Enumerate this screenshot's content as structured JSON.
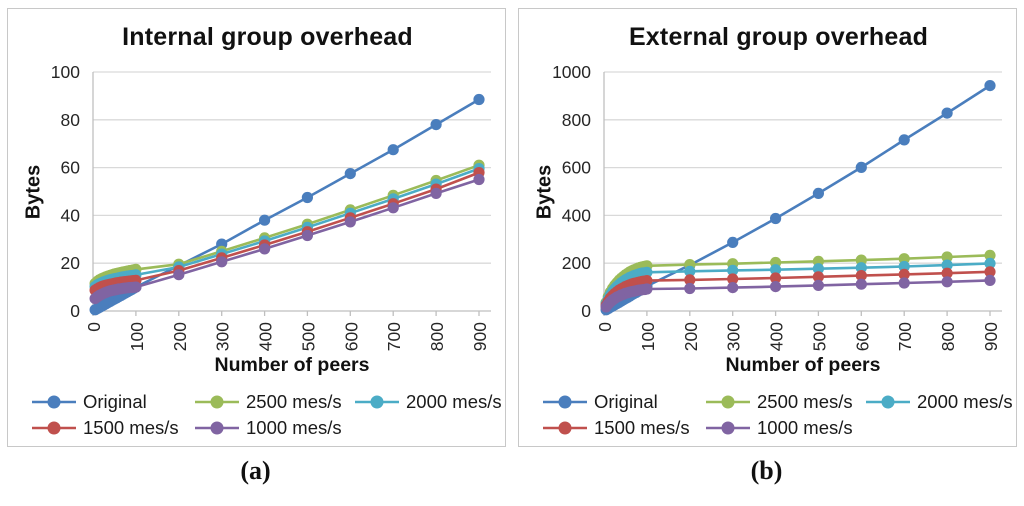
{
  "figure": {
    "captions": {
      "left": "(a)",
      "right": "(b)"
    }
  },
  "palette": {
    "original": "#4A7EBD",
    "mes2500": "#9BBB59",
    "mes2000": "#4BACC6",
    "mes1500": "#C0504D",
    "mes1000": "#8064A2",
    "gridline": "#D9D9D9",
    "axis": "#BFBFBF",
    "tick_text": "#262626"
  },
  "chart_data": [
    {
      "type": "line",
      "title": "Internal group overhead",
      "xlabel": "Number of peers",
      "ylabel": "Bytes",
      "ylim": [
        0,
        100
      ],
      "yticks": [
        0,
        20,
        40,
        60,
        80,
        100
      ],
      "xticks": [
        0,
        100,
        200,
        300,
        400,
        500,
        600,
        700,
        800,
        900
      ],
      "grid": true,
      "legend_position": "bottom",
      "x": [
        5,
        10,
        15,
        20,
        25,
        30,
        35,
        40,
        45,
        50,
        55,
        60,
        65,
        70,
        75,
        80,
        85,
        90,
        95,
        100,
        200,
        300,
        400,
        500,
        600,
        700,
        800,
        900
      ],
      "series": [
        {
          "name": "Original",
          "color": "#4A7EBD",
          "values": [
            0.5,
            1,
            1.5,
            2,
            2.5,
            3,
            3.5,
            4,
            4.5,
            5,
            5.5,
            6,
            6.5,
            7,
            7.5,
            8,
            8.5,
            9,
            9.5,
            10,
            19,
            28,
            38,
            47.5,
            57.5,
            67.5,
            78,
            88.5
          ]
        },
        {
          "name": "2500 mes/s",
          "color": "#9BBB59",
          "values": [
            11.5,
            12.4,
            13,
            13.5,
            13.9,
            14.3,
            14.6,
            14.9,
            15.2,
            15.5,
            15.7,
            15.9,
            16.1,
            16.3,
            16.5,
            16.7,
            16.9,
            17,
            17.2,
            17.4,
            19.6,
            25,
            30.6,
            36.3,
            42.3,
            48.4,
            54.6,
            61
          ]
        },
        {
          "name": "2000 mes/s",
          "color": "#4BACC6",
          "values": [
            10.2,
            10.9,
            11.4,
            11.8,
            12.2,
            12.5,
            12.8,
            13.1,
            13.3,
            13.5,
            13.7,
            13.9,
            14.1,
            14.3,
            14.4,
            14.6,
            14.7,
            14.8,
            14.9,
            15.1,
            18.4,
            23.8,
            29.3,
            35,
            40.9,
            46.9,
            53.1,
            59.6
          ]
        },
        {
          "name": "1500 mes/s",
          "color": "#C0504D",
          "values": [
            8.7,
            9.3,
            9.8,
            10.2,
            10.5,
            10.8,
            11,
            11.2,
            11.4,
            11.6,
            11.8,
            11.9,
            12.1,
            12.2,
            12.3,
            12.4,
            12.5,
            12.6,
            12.7,
            12.8,
            16.9,
            22.2,
            27.6,
            33.2,
            39,
            44.9,
            51,
            57.9
          ]
        },
        {
          "name": "1000 mes/s",
          "color": "#8064A2",
          "values": [
            5.2,
            5.9,
            6.5,
            7,
            7.4,
            7.8,
            8.1,
            8.4,
            8.6,
            8.8,
            9,
            9.2,
            9.3,
            9.5,
            9.6,
            9.7,
            9.8,
            9.85,
            9.9,
            10,
            15.2,
            20.6,
            26,
            31.6,
            37.3,
            43.2,
            49.2,
            55
          ]
        }
      ]
    },
    {
      "type": "line",
      "title": "External group overhead",
      "xlabel": "Number of peers",
      "ylabel": "Bytes",
      "ylim": [
        0,
        1000
      ],
      "yticks": [
        0,
        200,
        400,
        600,
        800,
        1000
      ],
      "xticks": [
        0,
        100,
        200,
        300,
        400,
        500,
        600,
        700,
        800,
        900
      ],
      "grid": true,
      "legend_position": "bottom",
      "x": [
        5,
        10,
        15,
        20,
        25,
        30,
        35,
        40,
        45,
        50,
        55,
        60,
        65,
        70,
        75,
        80,
        85,
        90,
        95,
        100,
        200,
        300,
        400,
        500,
        600,
        700,
        800,
        900
      ],
      "series": [
        {
          "name": "Original",
          "color": "#4A7EBD",
          "values": [
            5,
            10,
            16,
            21,
            26,
            31,
            36,
            42,
            47,
            52,
            57,
            62,
            68,
            73,
            78,
            83,
            88,
            94,
            99,
            104,
            192,
            287,
            387,
            492,
            601,
            716,
            828,
            943
          ]
        },
        {
          "name": "2500 mes/s",
          "color": "#9BBB59",
          "values": [
            35,
            60,
            79,
            94,
            107,
            118,
            128,
            137,
            144,
            151,
            157,
            163,
            168,
            172,
            176,
            180,
            183,
            185,
            187,
            189,
            194,
            198,
            203,
            208,
            213,
            219,
            226,
            233
          ]
        },
        {
          "name": "2000 mes/s",
          "color": "#4BACC6",
          "values": [
            30,
            51,
            68,
            81,
            92,
            102,
            110,
            118,
            124,
            130,
            135,
            140,
            144,
            148,
            151,
            154,
            157,
            159,
            160,
            162,
            166,
            170,
            173,
            177,
            181,
            186,
            192,
            199
          ]
        },
        {
          "name": "1500 mes/s",
          "color": "#C0504D",
          "values": [
            24,
            41,
            54,
            64,
            73,
            80,
            87,
            92,
            97,
            102,
            106,
            109,
            113,
            116,
            118,
            120,
            122,
            124,
            125,
            127,
            130,
            134,
            138,
            143,
            148,
            153,
            158,
            164
          ]
        },
        {
          "name": "1000 mes/s",
          "color": "#8064A2",
          "values": [
            17,
            29,
            38,
            46,
            52,
            58,
            62,
            67,
            70,
            74,
            76,
            79,
            81,
            83,
            85,
            87,
            88,
            89,
            90,
            92,
            94,
            98,
            102,
            107,
            112,
            117,
            122,
            128
          ]
        }
      ]
    }
  ]
}
